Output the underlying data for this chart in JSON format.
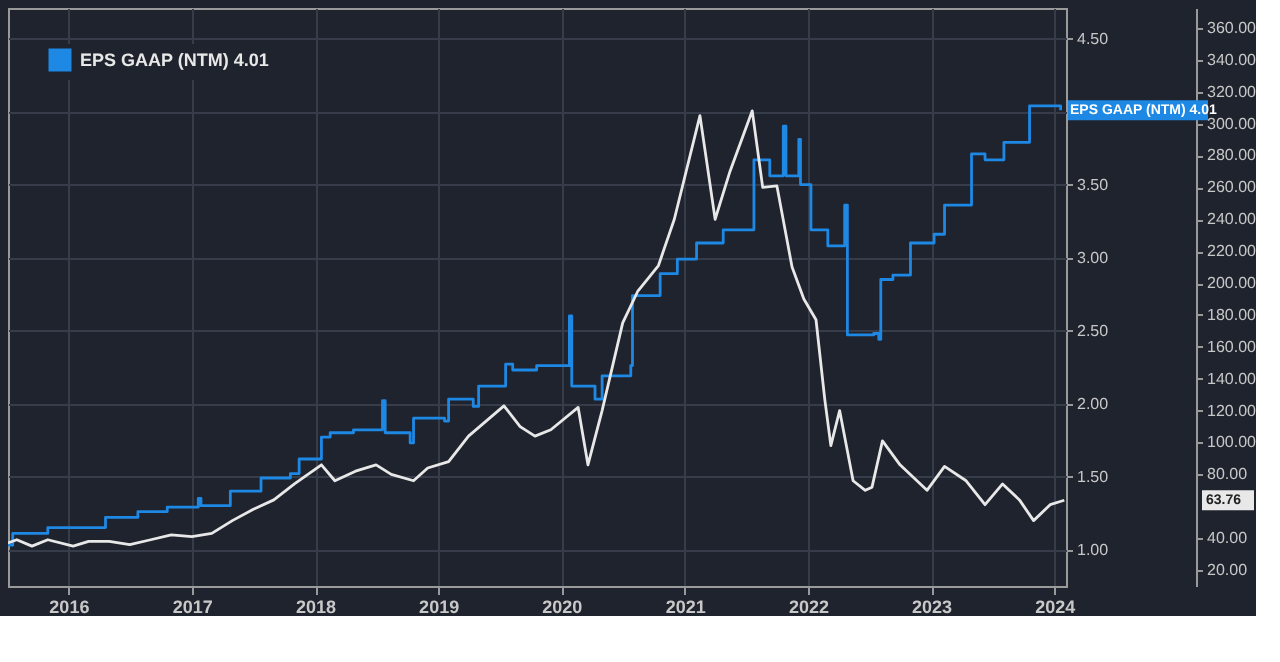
{
  "chart_data": {
    "type": "step",
    "legend": "top left",
    "grid": true,
    "xlim": [
      "2015-07-06",
      "2024-02-05"
    ],
    "xticks": [
      {
        "value": "2016-01-01",
        "label": "2016"
      },
      {
        "value": "2017-01-01",
        "label": "2017"
      },
      {
        "value": "2018-01-01",
        "label": "2018"
      },
      {
        "value": "2019-01-01",
        "label": "2019"
      },
      {
        "value": "2020-01-01",
        "label": "2020"
      },
      {
        "value": "2021-01-01",
        "label": "2021"
      },
      {
        "value": "2022-01-01",
        "label": "2022"
      },
      {
        "value": "2023-01-01",
        "label": "2023"
      },
      {
        "value": "2024-01-01",
        "label": "2024"
      }
    ],
    "ylim": [
      0.75,
      4.71
    ],
    "yticks": [
      {
        "value": 1,
        "label": "1.00"
      },
      {
        "value": 1.5,
        "label": "1.50"
      },
      {
        "value": 2,
        "label": "2.00"
      },
      {
        "value": 2.5,
        "label": "2.50"
      },
      {
        "value": 3,
        "label": "3.00"
      },
      {
        "value": 3.5,
        "label": "3.50"
      },
      {
        "value": 4,
        "label": null
      },
      {
        "value": 4.5,
        "label": "4.50"
      }
    ],
    "y2lim": [
      10,
      372.5
    ],
    "y2ticks": [
      {
        "value": 20,
        "label": "20.00"
      },
      {
        "value": 40,
        "label": "40.00"
      },
      {
        "value": 80,
        "label": "80.00"
      },
      {
        "value": 100,
        "label": "100.00"
      },
      {
        "value": 120,
        "label": "120.00"
      },
      {
        "value": 140,
        "label": "140.00"
      },
      {
        "value": 160,
        "label": "160.00"
      },
      {
        "value": 180,
        "label": "180.00"
      },
      {
        "value": 200,
        "label": "200.00"
      },
      {
        "value": 220,
        "label": "220.00"
      },
      {
        "value": 240,
        "label": "240.00"
      },
      {
        "value": 260,
        "label": "260.00"
      },
      {
        "value": 280,
        "label": "280.00"
      },
      {
        "value": 300,
        "label": "300.00"
      },
      {
        "value": 320,
        "label": "320.00"
      },
      {
        "value": 340,
        "label": "340.00"
      },
      {
        "value": 360,
        "label": "360.00"
      }
    ],
    "series": [
      {
        "name": "EPS GAAP (NTM) 4.01",
        "color": "#1e88e5",
        "x": [
          "2015-07-06",
          "2015-07-20",
          "2015-11-01",
          "2016-04-20",
          "2016-07-25",
          "2016-10-20",
          "2017-01-20",
          "2017-01-28",
          "2017-04-25",
          "2017-07-25",
          "2017-10-20",
          "2017-11-15",
          "2018-01-20",
          "2018-02-15",
          "2018-04-25",
          "2018-07-20",
          "2018-07-28",
          "2018-10-10",
          "2018-10-20",
          "2019-01-20",
          "2019-02-01",
          "2019-04-15",
          "2019-05-01",
          "2019-07-20",
          "2019-08-10",
          "2019-10-20",
          "2020-01-25",
          "2020-02-01",
          "2020-04-10",
          "2020-05-01",
          "2020-07-25",
          "2020-07-30",
          "2020-10-20",
          "2020-12-10",
          "2021-02-05",
          "2021-04-25",
          "2021-07-25",
          "2021-09-10",
          "2021-10-20",
          "2021-10-28",
          "2021-12-05",
          "2021-12-10",
          "2022-01-10",
          "2022-03-01",
          "2022-04-20",
          "2022-04-28",
          "2022-07-15",
          "2022-07-30",
          "2022-08-05",
          "2022-09-10",
          "2022-11-01",
          "2023-01-10",
          "2023-02-10",
          "2023-05-01",
          "2023-06-10",
          "2023-08-05",
          "2023-10-20",
          "2024-01-20"
        ],
        "values": [
          1.03,
          1.11,
          1.15,
          1.22,
          1.26,
          1.29,
          1.35,
          1.3,
          1.4,
          1.49,
          1.52,
          1.62,
          1.77,
          1.8,
          1.82,
          2.02,
          1.8,
          1.73,
          1.9,
          1.88,
          2.03,
          1.98,
          2.12,
          2.27,
          2.23,
          2.26,
          2.6,
          2.12,
          2.03,
          2.19,
          2.26,
          2.74,
          2.89,
          2.99,
          3.1,
          3.19,
          3.67,
          3.56,
          3.9,
          3.56,
          3.81,
          3.5,
          3.19,
          3.08,
          3.36,
          2.47,
          2.48,
          2.44,
          2.85,
          2.88,
          3.1,
          3.16,
          3.36,
          3.71,
          3.67,
          3.79,
          4.04,
          4.01
        ]
      },
      {
        "type": "line",
        "axis": "y2",
        "color": "#e8e8e8",
        "x": [
          "2015-07-06",
          "2015-08-01",
          "2015-09-15",
          "2015-11-01",
          "2016-01-15",
          "2016-03-01",
          "2016-05-01",
          "2016-07-01",
          "2016-09-01",
          "2016-11-01",
          "2017-01-01",
          "2017-03-01",
          "2017-05-01",
          "2017-07-01",
          "2017-09-01",
          "2017-11-01",
          "2018-01-20",
          "2018-03-01",
          "2018-05-01",
          "2018-07-01",
          "2018-08-15",
          "2018-10-20",
          "2018-12-01",
          "2019-02-01",
          "2019-04-01",
          "2019-07-15",
          "2019-09-01",
          "2019-10-15",
          "2019-12-01",
          "2020-02-20",
          "2020-03-20",
          "2020-05-01",
          "2020-07-01",
          "2020-08-15",
          "2020-10-15",
          "2020-12-01",
          "2021-02-15",
          "2021-04-01",
          "2021-05-15",
          "2021-07-20",
          "2021-08-20",
          "2021-10-01",
          "2021-11-15",
          "2021-12-20",
          "2022-01-25",
          "2022-02-20",
          "2022-03-10",
          "2022-04-05",
          "2022-05-15",
          "2022-06-20",
          "2022-07-10",
          "2022-08-10",
          "2022-10-01",
          "2022-12-20",
          "2023-02-10",
          "2023-04-15",
          "2023-06-10",
          "2023-08-01",
          "2023-09-20",
          "2023-11-01",
          "2023-12-20",
          "2024-01-31"
        ],
        "values": [
          37,
          39,
          35,
          39,
          35,
          38,
          38,
          36,
          39,
          42,
          41,
          43,
          51,
          58,
          64,
          74,
          86,
          76,
          82,
          86,
          80,
          76,
          84,
          88,
          104,
          123,
          110,
          104,
          108,
          122,
          86,
          120,
          175,
          195,
          211,
          240,
          305,
          240,
          270,
          308,
          260,
          261,
          210,
          190,
          177,
          127,
          98,
          120,
          76,
          70,
          72,
          101,
          86,
          70,
          85,
          76,
          61,
          74,
          64,
          51,
          61,
          63.76
        ]
      }
    ],
    "annotations": [
      "EPS GAAP (NTM) 4.01",
      "63.76"
    ]
  }
}
